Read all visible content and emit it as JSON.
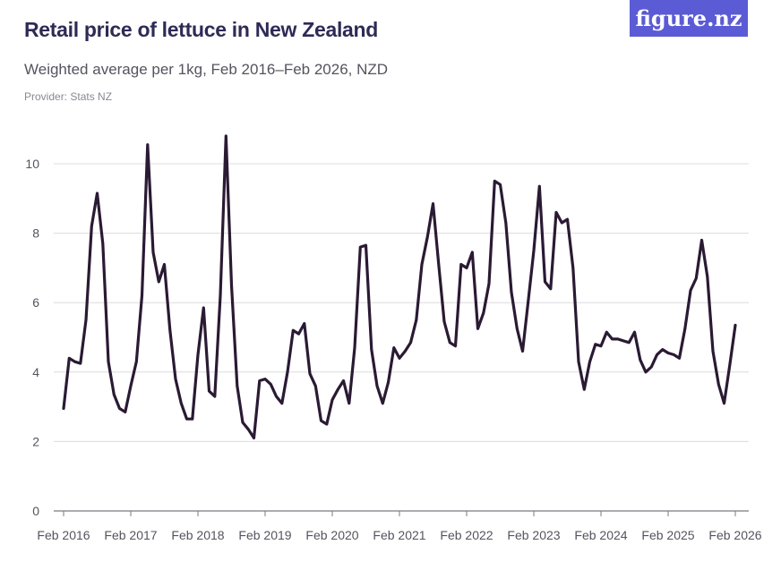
{
  "title": "Retail price of lettuce in New Zealand",
  "subtitle": "Weighted average per 1kg, Feb 2016–Feb 2026, NZD",
  "provider": "Provider: Stats NZ",
  "logo": "figure.nz",
  "colors": {
    "line": "#2a1a33",
    "grid": "#dcdce0",
    "axis": "#7a7a82",
    "title": "#2d2b55",
    "logo_bg": "#5b5bd6"
  },
  "chart_data": {
    "type": "line",
    "title": "Retail price of lettuce in New Zealand",
    "subtitle": "Weighted average per 1kg, Feb 2016–Feb 2026, NZD",
    "xlabel": "",
    "ylabel": "",
    "ylim": [
      0,
      11
    ],
    "yticks": [
      0,
      2,
      4,
      6,
      8,
      10
    ],
    "grid": true,
    "x_start": "Feb 2016",
    "x_end": "Feb 2026",
    "frequency": "monthly",
    "xtick_labels": [
      "Feb 2016",
      "Feb 2017",
      "Feb 2018",
      "Feb 2019",
      "Feb 2020",
      "Feb 2021",
      "Feb 2022",
      "Feb 2023",
      "Feb 2024",
      "Feb 2025",
      "Feb 2026"
    ],
    "values": [
      2.95,
      4.4,
      4.3,
      4.25,
      5.5,
      8.2,
      9.15,
      7.7,
      4.3,
      3.35,
      2.95,
      2.85,
      3.6,
      4.3,
      6.2,
      10.55,
      7.45,
      6.6,
      7.1,
      5.2,
      3.8,
      3.1,
      2.65,
      2.65,
      4.5,
      5.85,
      3.45,
      3.3,
      6.2,
      10.8,
      6.5,
      3.6,
      2.55,
      2.35,
      2.1,
      3.75,
      3.8,
      3.65,
      3.3,
      3.1,
      4.0,
      5.2,
      5.1,
      5.4,
      3.95,
      3.6,
      2.6,
      2.5,
      3.2,
      3.5,
      3.75,
      3.1,
      4.7,
      7.6,
      7.65,
      4.65,
      3.6,
      3.1,
      3.7,
      4.7,
      4.4,
      4.6,
      4.85,
      5.5,
      7.1,
      7.9,
      8.85,
      7.1,
      5.45,
      4.85,
      4.75,
      7.1,
      7.0,
      7.45,
      5.25,
      5.7,
      6.55,
      9.5,
      9.4,
      8.3,
      6.3,
      5.25,
      4.6,
      6.05,
      7.5,
      9.35,
      6.6,
      6.4,
      8.6,
      8.3,
      8.4,
      7.0,
      4.3,
      3.5,
      4.3,
      4.8,
      4.75,
      5.15,
      4.95,
      4.95,
      4.9,
      4.85,
      5.15,
      4.35,
      4.0,
      4.15,
      4.5,
      4.65,
      4.55,
      4.5,
      4.4,
      5.25,
      6.35,
      6.7,
      7.8,
      6.75,
      4.6,
      3.65,
      3.1,
      4.2,
      5.35
    ]
  }
}
